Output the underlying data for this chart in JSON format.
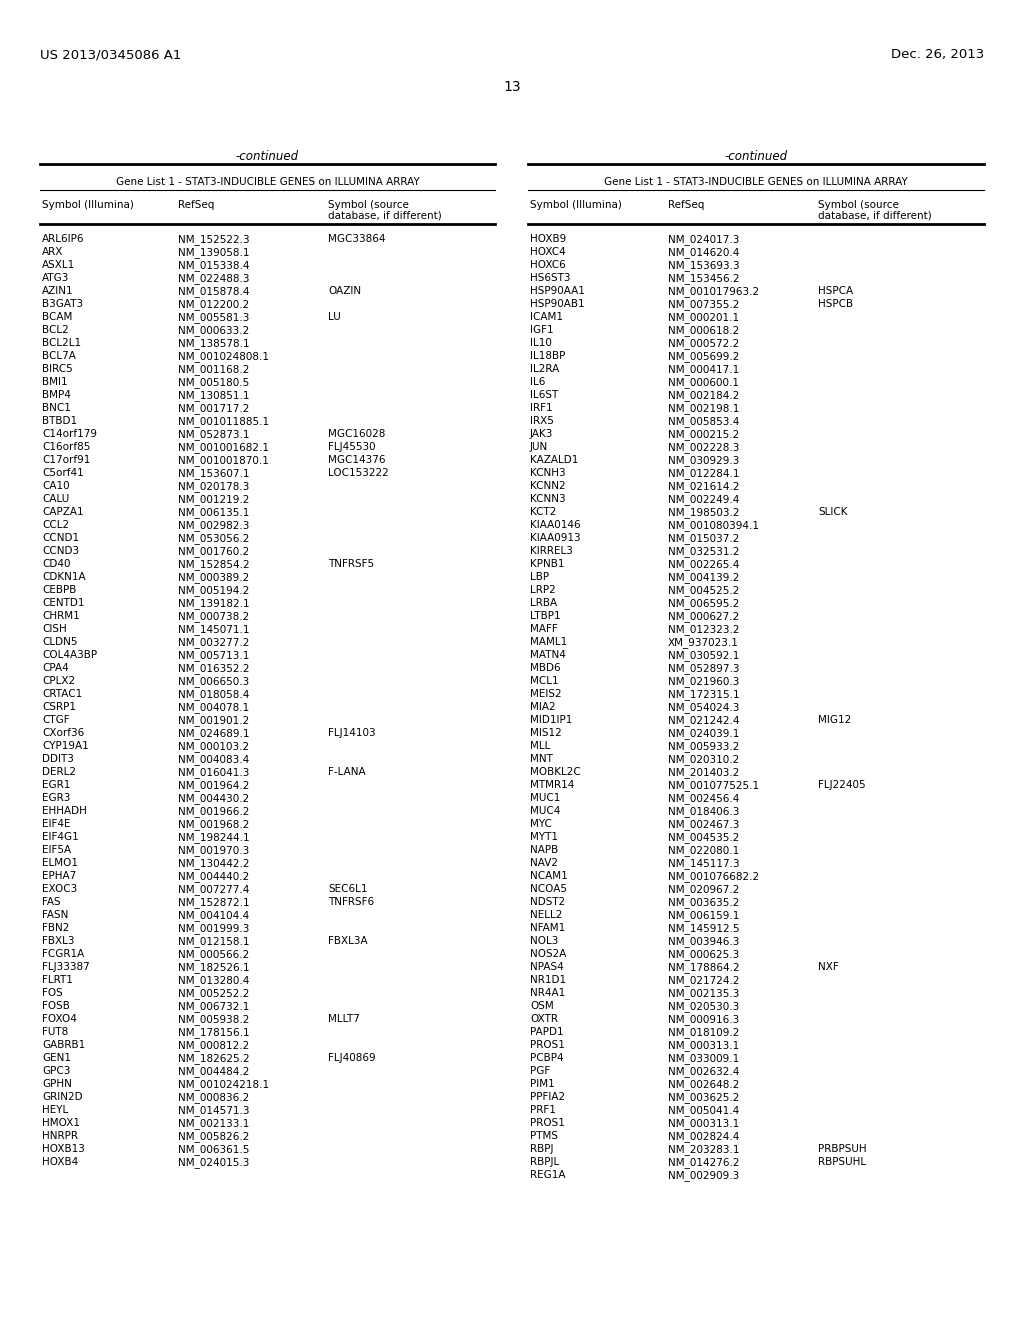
{
  "page_number": "13",
  "patent_left": "US 2013/0345086 A1",
  "patent_right": "Dec. 26, 2013",
  "continued_label": "-continued",
  "table_title": "Gene List 1 - STAT3-INDUCIBLE GENES on ILLUMINA ARRAY",
  "col1_header": "Symbol (Illumina)",
  "col2_header": "RefSeq",
  "col3_header_line1": "Symbol (source",
  "col3_header_line2": "database, if different)",
  "left_data": [
    [
      "ARL6IP6",
      "NM_152522.3",
      "MGC33864"
    ],
    [
      "ARX",
      "NM_139058.1",
      ""
    ],
    [
      "ASXL1",
      "NM_015338.4",
      ""
    ],
    [
      "ATG3",
      "NM_022488.3",
      ""
    ],
    [
      "AZIN1",
      "NM_015878.4",
      "OAZIN"
    ],
    [
      "B3GAT3",
      "NM_012200.2",
      ""
    ],
    [
      "BCAM",
      "NM_005581.3",
      "LU"
    ],
    [
      "BCL2",
      "NM_000633.2",
      ""
    ],
    [
      "BCL2L1",
      "NM_138578.1",
      ""
    ],
    [
      "BCL7A",
      "NM_001024808.1",
      ""
    ],
    [
      "BIRC5",
      "NM_001168.2",
      ""
    ],
    [
      "BMI1",
      "NM_005180.5",
      ""
    ],
    [
      "BMP4",
      "NM_130851.1",
      ""
    ],
    [
      "BNC1",
      "NM_001717.2",
      ""
    ],
    [
      "BTBD1",
      "NM_001011885.1",
      ""
    ],
    [
      "C14orf179",
      "NM_052873.1",
      "MGC16028"
    ],
    [
      "C16orf85",
      "NM_001001682.1",
      "FLJ45530"
    ],
    [
      "C17orf91",
      "NM_001001870.1",
      "MGC14376"
    ],
    [
      "C5orf41",
      "NM_153607.1",
      "LOC153222"
    ],
    [
      "CA10",
      "NM_020178.3",
      ""
    ],
    [
      "CALU",
      "NM_001219.2",
      ""
    ],
    [
      "CAPZA1",
      "NM_006135.1",
      ""
    ],
    [
      "CCL2",
      "NM_002982.3",
      ""
    ],
    [
      "CCND1",
      "NM_053056.2",
      ""
    ],
    [
      "CCND3",
      "NM_001760.2",
      ""
    ],
    [
      "CD40",
      "NM_152854.2",
      "TNFRSF5"
    ],
    [
      "CDKN1A",
      "NM_000389.2",
      ""
    ],
    [
      "CEBPB",
      "NM_005194.2",
      ""
    ],
    [
      "CENTD1",
      "NM_139182.1",
      ""
    ],
    [
      "CHRM1",
      "NM_000738.2",
      ""
    ],
    [
      "CISH",
      "NM_145071.1",
      ""
    ],
    [
      "CLDN5",
      "NM_003277.2",
      ""
    ],
    [
      "COL4A3BP",
      "NM_005713.1",
      ""
    ],
    [
      "CPA4",
      "NM_016352.2",
      ""
    ],
    [
      "CPLX2",
      "NM_006650.3",
      ""
    ],
    [
      "CRTAC1",
      "NM_018058.4",
      ""
    ],
    [
      "CSRP1",
      "NM_004078.1",
      ""
    ],
    [
      "CTGF",
      "NM_001901.2",
      ""
    ],
    [
      "CXorf36",
      "NM_024689.1",
      "FLJ14103"
    ],
    [
      "CYP19A1",
      "NM_000103.2",
      ""
    ],
    [
      "DDIT3",
      "NM_004083.4",
      ""
    ],
    [
      "DERL2",
      "NM_016041.3",
      "F-LANA"
    ],
    [
      "EGR1",
      "NM_001964.2",
      ""
    ],
    [
      "EGR3",
      "NM_004430.2",
      ""
    ],
    [
      "EHHADH",
      "NM_001966.2",
      ""
    ],
    [
      "EIF4E",
      "NM_001968.2",
      ""
    ],
    [
      "EIF4G1",
      "NM_198244.1",
      ""
    ],
    [
      "EIF5A",
      "NM_001970.3",
      ""
    ],
    [
      "ELMO1",
      "NM_130442.2",
      ""
    ],
    [
      "EPHA7",
      "NM_004440.2",
      ""
    ],
    [
      "EXOC3",
      "NM_007277.4",
      "SEC6L1"
    ],
    [
      "FAS",
      "NM_152872.1",
      "TNFRSF6"
    ],
    [
      "FASN",
      "NM_004104.4",
      ""
    ],
    [
      "FBN2",
      "NM_001999.3",
      ""
    ],
    [
      "FBXL3",
      "NM_012158.1",
      "FBXL3A"
    ],
    [
      "FCGR1A",
      "NM_000566.2",
      ""
    ],
    [
      "FLJ33387",
      "NM_182526.1",
      ""
    ],
    [
      "FLRT1",
      "NM_013280.4",
      ""
    ],
    [
      "FOS",
      "NM_005252.2",
      ""
    ],
    [
      "FOSB",
      "NM_006732.1",
      ""
    ],
    [
      "FOXO4",
      "NM_005938.2",
      "MLLT7"
    ],
    [
      "FUT8",
      "NM_178156.1",
      ""
    ],
    [
      "GABRB1",
      "NM_000812.2",
      ""
    ],
    [
      "GEN1",
      "NM_182625.2",
      "FLJ40869"
    ],
    [
      "GPC3",
      "NM_004484.2",
      ""
    ],
    [
      "GPHN",
      "NM_001024218.1",
      ""
    ],
    [
      "GRIN2D",
      "NM_000836.2",
      ""
    ],
    [
      "HEYL",
      "NM_014571.3",
      ""
    ],
    [
      "HMOX1",
      "NM_002133.1",
      ""
    ],
    [
      "HNRPR",
      "NM_005826.2",
      ""
    ],
    [
      "HOXB13",
      "NM_006361.5",
      ""
    ],
    [
      "HOXB4",
      "NM_024015.3",
      ""
    ]
  ],
  "right_data": [
    [
      "HOXB9",
      "NM_024017.3",
      ""
    ],
    [
      "HOXC4",
      "NM_014620.4",
      ""
    ],
    [
      "HOXC6",
      "NM_153693.3",
      ""
    ],
    [
      "HS6ST3",
      "NM_153456.2",
      ""
    ],
    [
      "HSP90AA1",
      "NM_001017963.2",
      "HSPCA"
    ],
    [
      "HSP90AB1",
      "NM_007355.2",
      "HSPCB"
    ],
    [
      "ICAM1",
      "NM_000201.1",
      ""
    ],
    [
      "IGF1",
      "NM_000618.2",
      ""
    ],
    [
      "IL10",
      "NM_000572.2",
      ""
    ],
    [
      "IL18BP",
      "NM_005699.2",
      ""
    ],
    [
      "IL2RA",
      "NM_000417.1",
      ""
    ],
    [
      "IL6",
      "NM_000600.1",
      ""
    ],
    [
      "IL6ST",
      "NM_002184.2",
      ""
    ],
    [
      "IRF1",
      "NM_002198.1",
      ""
    ],
    [
      "IRX5",
      "NM_005853.4",
      ""
    ],
    [
      "JAK3",
      "NM_000215.2",
      ""
    ],
    [
      "JUN",
      "NM_002228.3",
      ""
    ],
    [
      "KAZALD1",
      "NM_030929.3",
      ""
    ],
    [
      "KCNH3",
      "NM_012284.1",
      ""
    ],
    [
      "KCNN2",
      "NM_021614.2",
      ""
    ],
    [
      "KCNN3",
      "NM_002249.4",
      ""
    ],
    [
      "KCT2",
      "NM_198503.2",
      "SLICK"
    ],
    [
      "KIAA0146",
      "NM_001080394.1",
      ""
    ],
    [
      "KIAA0913",
      "NM_015037.2",
      ""
    ],
    [
      "KIRREL3",
      "NM_032531.2",
      ""
    ],
    [
      "KPNB1",
      "NM_002265.4",
      ""
    ],
    [
      "LBP",
      "NM_004139.2",
      ""
    ],
    [
      "LRP2",
      "NM_004525.2",
      ""
    ],
    [
      "LRBA",
      "NM_006595.2",
      ""
    ],
    [
      "LTBP1",
      "NM_000627.2",
      ""
    ],
    [
      "MAFF",
      "NM_012323.2",
      ""
    ],
    [
      "MAML1",
      "XM_937023.1",
      ""
    ],
    [
      "MATN4",
      "NM_030592.1",
      ""
    ],
    [
      "MBD6",
      "NM_052897.3",
      ""
    ],
    [
      "MCL1",
      "NM_021960.3",
      ""
    ],
    [
      "MEIS2",
      "NM_172315.1",
      ""
    ],
    [
      "MIA2",
      "NM_054024.3",
      ""
    ],
    [
      "MID1IP1",
      "NM_021242.4",
      "MIG12"
    ],
    [
      "MIS12",
      "NM_024039.1",
      ""
    ],
    [
      "MLL",
      "NM_005933.2",
      ""
    ],
    [
      "MNT",
      "NM_020310.2",
      ""
    ],
    [
      "MOBKL2C",
      "NM_201403.2",
      ""
    ],
    [
      "MTMR14",
      "NM_001077525.1",
      "FLJ22405"
    ],
    [
      "MUC1",
      "NM_002456.4",
      ""
    ],
    [
      "MUC4",
      "NM_018406.3",
      ""
    ],
    [
      "MYC",
      "NM_002467.3",
      ""
    ],
    [
      "MYT1",
      "NM_004535.2",
      ""
    ],
    [
      "NAPB",
      "NM_022080.1",
      ""
    ],
    [
      "NAV2",
      "NM_145117.3",
      ""
    ],
    [
      "NCAM1",
      "NM_001076682.2",
      ""
    ],
    [
      "NCOA5",
      "NM_020967.2",
      ""
    ],
    [
      "NDST2",
      "NM_003635.2",
      ""
    ],
    [
      "NELL2",
      "NM_006159.1",
      ""
    ],
    [
      "NFAM1",
      "NM_145912.5",
      ""
    ],
    [
      "NOL3",
      "NM_003946.3",
      ""
    ],
    [
      "NOS2A",
      "NM_000625.3",
      ""
    ],
    [
      "NPAS4",
      "NM_178864.2",
      "NXF"
    ],
    [
      "NR1D1",
      "NM_021724.2",
      ""
    ],
    [
      "NR4A1",
      "NM_002135.3",
      ""
    ],
    [
      "OSM",
      "NM_020530.3",
      ""
    ],
    [
      "OXTR",
      "NM_000916.3",
      ""
    ],
    [
      "PAPD1",
      "NM_018109.2",
      ""
    ],
    [
      "PROS1",
      "NM_000313.1",
      ""
    ],
    [
      "PCBP4",
      "NM_033009.1",
      ""
    ],
    [
      "PGF",
      "NM_002632.4",
      ""
    ],
    [
      "PIM1",
      "NM_002648.2",
      ""
    ],
    [
      "PPFIA2",
      "NM_003625.2",
      ""
    ],
    [
      "PRF1",
      "NM_005041.4",
      ""
    ],
    [
      "PROS1",
      "NM_000313.1",
      ""
    ],
    [
      "PTMS",
      "NM_002824.4",
      ""
    ],
    [
      "RBPJ",
      "NM_203283.1",
      "PRBPSUH"
    ],
    [
      "RBPJL",
      "NM_014276.2",
      "RBPSUHL"
    ],
    [
      "REG1A",
      "NM_002909.3",
      ""
    ]
  ],
  "bg_color": "#ffffff",
  "text_color": "#000000"
}
